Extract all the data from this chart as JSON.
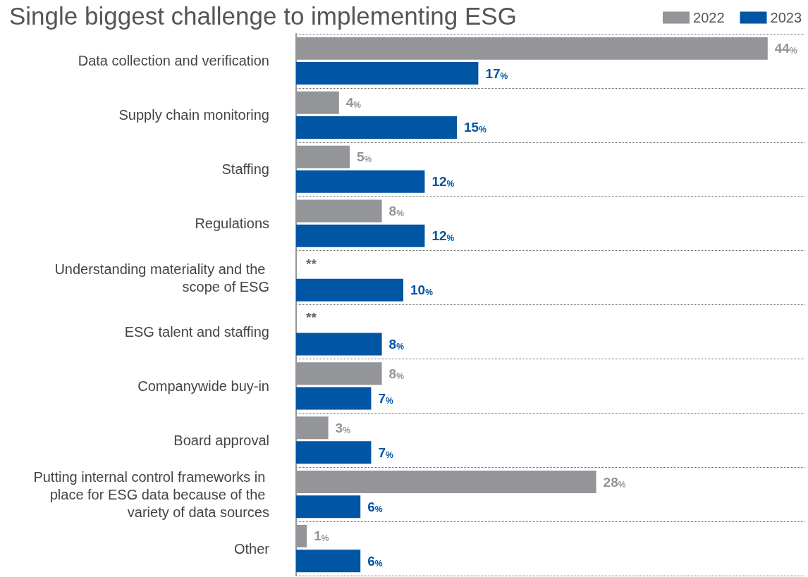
{
  "chart_data": {
    "type": "bar",
    "orientation": "horizontal",
    "title": "Single biggest challenge to implementing ESG",
    "categories": [
      "Data collection and verification",
      "Supply chain monitoring",
      "Staffing",
      "Regulations",
      "Understanding materiality and the scope of ESG",
      "ESG talent and staffing",
      "Companywide buy-in",
      "Board approval",
      "Putting internal control frameworks in place for ESG data because of the variety of data sources",
      "Other"
    ],
    "series": [
      {
        "name": "2022",
        "color": "#939598",
        "values": [
          44,
          4,
          5,
          8,
          null,
          null,
          8,
          3,
          28,
          1
        ],
        "value_labels": [
          "44%",
          "4%",
          "5%",
          "8%",
          "**",
          "**",
          "8%",
          "3%",
          "28%",
          "1%"
        ]
      },
      {
        "name": "2023",
        "color": "#0055a4",
        "values": [
          17,
          15,
          12,
          12,
          10,
          8,
          7,
          7,
          6,
          6
        ],
        "value_labels": [
          "17%",
          "15%",
          "12%",
          "12%",
          "10%",
          "8%",
          "7%",
          "7%",
          "6%",
          "6%"
        ]
      }
    ],
    "xlim": [
      0,
      47.5
    ],
    "tick_labels": "y",
    "grid": "y",
    "legend": "top right"
  }
}
